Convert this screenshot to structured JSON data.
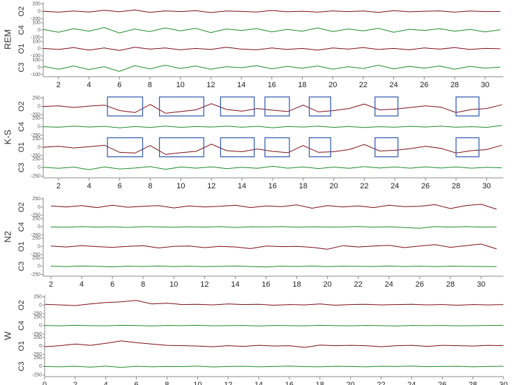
{
  "chart_data": [
    {
      "type": "line",
      "title": "REM",
      "x": [
        1,
        2,
        3,
        4,
        5,
        6,
        7,
        8,
        9,
        10,
        11,
        12,
        13,
        14,
        15,
        16,
        17,
        18,
        19,
        20,
        21,
        22,
        23,
        24,
        25,
        26,
        27,
        28,
        29,
        30,
        31
      ],
      "xlim": [
        1,
        31.2
      ],
      "xticks": [
        2,
        4,
        6,
        8,
        10,
        12,
        14,
        16,
        18,
        20,
        22,
        24,
        26,
        28,
        30
      ],
      "series": [
        {
          "name": "O2",
          "color": "#7a0c14",
          "ylim": [
            -250,
            250
          ],
          "yticks": [
            200,
            0,
            -200
          ],
          "values": [
            5,
            -20,
            10,
            -15,
            30,
            -10,
            40,
            -25,
            15,
            -5,
            20,
            -30,
            10,
            0,
            -15,
            25,
            -10,
            5,
            -20,
            15,
            -5,
            10,
            -25,
            20,
            -10,
            5,
            15,
            -20,
            10,
            -5,
            0
          ]
        },
        {
          "name": "C4",
          "color": "#1f8a2a",
          "ylim": [
            -130,
            130
          ],
          "yticks": [
            100,
            0,
            -100
          ],
          "values": [
            10,
            -30,
            20,
            -15,
            35,
            -40,
            15,
            -20,
            30,
            -10,
            25,
            -35,
            15,
            -5,
            20,
            -25,
            10,
            -15,
            30,
            -20,
            15,
            -10,
            25,
            -30,
            10,
            -5,
            20,
            -15,
            10,
            -25,
            5
          ]
        },
        {
          "name": "O1",
          "color": "#7a0c14",
          "ylim": [
            -130,
            130
          ],
          "yticks": [
            100,
            0,
            -100
          ],
          "values": [
            5,
            -10,
            15,
            -20,
            10,
            -25,
            20,
            -5,
            10,
            -15,
            5,
            -10,
            20,
            -5,
            -15,
            10,
            -10,
            5,
            -20,
            10,
            -5,
            15,
            -10,
            5,
            -15,
            10,
            -5,
            15,
            -10,
            5,
            0
          ]
        },
        {
          "name": "C3",
          "color": "#1f8a2a",
          "ylim": [
            -130,
            130
          ],
          "yticks": [
            100,
            0,
            -100
          ],
          "values": [
            15,
            -25,
            20,
            -30,
            10,
            -55,
            25,
            -20,
            30,
            -15,
            20,
            -25,
            10,
            -5,
            25,
            -20,
            15,
            -10,
            20,
            -25,
            10,
            -15,
            30,
            -20,
            15,
            -10,
            20,
            -25,
            15,
            -10,
            5
          ]
        }
      ]
    },
    {
      "type": "line",
      "title": "K-S",
      "x": [
        1,
        2,
        3,
        4,
        5,
        6,
        7,
        8,
        9,
        10,
        11,
        12,
        13,
        14,
        15,
        16,
        17,
        18,
        19,
        20,
        21,
        22,
        23,
        24,
        25,
        26,
        27,
        28,
        29,
        30,
        31
      ],
      "xlim": [
        1,
        31.1
      ],
      "xticks": [
        2,
        4,
        6,
        8,
        10,
        12,
        14,
        16,
        18,
        20,
        22,
        24,
        26,
        28,
        30
      ],
      "series": [
        {
          "name": "O2",
          "color": "#7a0c14",
          "ylim": [
            -300,
            300
          ],
          "yticks": [
            250,
            0,
            -250
          ],
          "values": [
            0,
            20,
            -30,
            10,
            40,
            -120,
            -180,
            60,
            -200,
            -150,
            -100,
            80,
            -90,
            -140,
            -60,
            -110,
            -150,
            40,
            -160,
            -120,
            -60,
            70,
            -100,
            -80,
            -30,
            20,
            -20,
            -180,
            -90,
            -60,
            50
          ],
          "spans": [
            [
              5.2,
              7.5
            ],
            [
              8.6,
              11.5
            ],
            [
              12.6,
              14.8
            ],
            [
              15.5,
              17.1
            ],
            [
              18.4,
              19.8
            ],
            [
              22.7,
              24.2
            ],
            [
              28,
              29.5
            ]
          ]
        },
        {
          "name": "C4",
          "color": "#1f8a2a",
          "ylim": [
            -300,
            300
          ],
          "yticks": [
            250,
            0,
            -250
          ],
          "values": [
            5,
            -10,
            20,
            -5,
            15,
            -30,
            10,
            -20,
            25,
            -15,
            10,
            -5,
            20,
            -10,
            15,
            -25,
            10,
            -5,
            20,
            -15,
            10,
            -20,
            5,
            -10,
            15,
            -5,
            20,
            -10,
            5,
            -15,
            40
          ]
        },
        {
          "name": "O1",
          "color": "#7a0c14",
          "ylim": [
            -300,
            300
          ],
          "yticks": [
            250,
            0,
            -250
          ],
          "values": [
            0,
            30,
            -20,
            15,
            60,
            -150,
            -170,
            50,
            -210,
            -160,
            -120,
            90,
            -100,
            -130,
            -50,
            -120,
            -160,
            50,
            -150,
            -130,
            -70,
            80,
            -110,
            -90,
            -40,
            30,
            -30,
            -170,
            -100,
            -70,
            60
          ],
          "spans": [
            [
              5.2,
              7.5
            ],
            [
              8.6,
              11.5
            ],
            [
              12.6,
              14.8
            ],
            [
              15.5,
              17.1
            ],
            [
              18.4,
              19.8
            ],
            [
              22.7,
              24.2
            ],
            [
              28,
              29.5
            ]
          ]
        },
        {
          "name": "C3",
          "color": "#1f8a2a",
          "ylim": [
            -300,
            300
          ],
          "yticks": [
            250,
            0,
            -250
          ],
          "values": [
            10,
            -20,
            15,
            -60,
            20,
            -40,
            -10,
            30,
            -50,
            20,
            -15,
            25,
            -30,
            10,
            -20,
            40,
            -15,
            20,
            -25,
            15,
            -20,
            30,
            -10,
            20,
            -15,
            25,
            -10,
            20,
            -15,
            10,
            -5
          ]
        }
      ]
    },
    {
      "type": "line",
      "title": "N2",
      "x": [
        2,
        3,
        4,
        5,
        6,
        7,
        8,
        9,
        10,
        11,
        12,
        13,
        14,
        15,
        16,
        17,
        18,
        19,
        20,
        21,
        22,
        23,
        24,
        25,
        26,
        27,
        28,
        29,
        30,
        31
      ],
      "xlim": [
        1.5,
        31.45
      ],
      "xticks": [
        2,
        4,
        6,
        8,
        10,
        12,
        14,
        16,
        18,
        20,
        22,
        24,
        26,
        28,
        30
      ],
      "series": [
        {
          "name": "O2",
          "color": "#7a0c14",
          "ylim": [
            -300,
            300
          ],
          "yticks": [
            250,
            0,
            -250
          ],
          "values": [
            40,
            10,
            50,
            -10,
            60,
            0,
            30,
            50,
            -20,
            40,
            10,
            30,
            60,
            -10,
            40,
            20,
            70,
            -30,
            50,
            10,
            40,
            -10,
            60,
            20,
            30,
            80,
            -40,
            50,
            90,
            -60
          ]
        },
        {
          "name": "C4",
          "color": "#1f8a2a",
          "ylim": [
            -300,
            300
          ],
          "yticks": [
            250,
            0,
            -250
          ],
          "values": [
            0,
            -10,
            10,
            -5,
            5,
            -15,
            10,
            0,
            -10,
            5,
            -5,
            10,
            -15,
            5,
            0,
            10,
            -10,
            5,
            -5,
            0,
            15,
            -10,
            5,
            -20,
            -40,
            10,
            -5,
            10,
            -5,
            0
          ]
        },
        {
          "name": "O1",
          "color": "#7a0c14",
          "ylim": [
            -300,
            300
          ],
          "yticks": [
            250,
            0,
            -250
          ],
          "values": [
            20,
            -10,
            30,
            0,
            -20,
            10,
            30,
            -40,
            10,
            20,
            -30,
            10,
            -10,
            -60,
            20,
            0,
            10,
            -20,
            -80,
            30,
            -10,
            20,
            40,
            -30,
            20,
            60,
            -20,
            30,
            80,
            -70
          ]
        },
        {
          "name": "C3",
          "color": "#1f8a2a",
          "ylim": [
            -300,
            300
          ],
          "yticks": [
            250,
            0,
            -250
          ],
          "values": [
            5,
            -10,
            10,
            0,
            -15,
            5,
            -5,
            10,
            -10,
            5,
            -10,
            0,
            10,
            -5,
            -20,
            5,
            -5,
            10,
            -10,
            5,
            0,
            -5,
            10,
            -5,
            5,
            -10,
            5,
            0,
            -5,
            -10
          ]
        }
      ]
    },
    {
      "type": "line",
      "title": "W",
      "x": [
        0,
        1,
        2,
        3,
        4,
        5,
        6,
        7,
        8,
        9,
        10,
        11,
        12,
        13,
        14,
        15,
        16,
        17,
        18,
        19,
        20,
        21,
        22,
        23,
        24,
        25,
        26,
        27,
        28,
        29,
        30
      ],
      "xlim": [
        0,
        30
      ],
      "xticks": [
        0,
        2,
        4,
        6,
        8,
        10,
        12,
        14,
        16,
        18,
        20,
        22,
        24,
        26,
        28,
        30
      ],
      "series": [
        {
          "name": "O2",
          "color": "#7a0c14",
          "ylim": [
            -300,
            300
          ],
          "yticks": [
            250,
            0,
            -250
          ],
          "values": [
            30,
            10,
            -10,
            40,
            80,
            100,
            140,
            40,
            60,
            20,
            30,
            10,
            40,
            20,
            30,
            0,
            20,
            10,
            40,
            0,
            20,
            30,
            10,
            20,
            30,
            10,
            20,
            0,
            20,
            10,
            20
          ]
        },
        {
          "name": "C4",
          "color": "#1f8a2a",
          "ylim": [
            -300,
            300
          ],
          "yticks": [
            250,
            0,
            -250
          ],
          "values": [
            5,
            -5,
            10,
            0,
            -5,
            10,
            5,
            -10,
            5,
            0,
            10,
            -5,
            0,
            5,
            -10,
            5,
            0,
            -5,
            10,
            0,
            -5,
            5,
            0,
            -10,
            5,
            0,
            5,
            -5,
            0,
            5,
            10
          ]
        },
        {
          "name": "O1",
          "color": "#7a0c14",
          "ylim": [
            -300,
            300
          ],
          "yticks": [
            250,
            0,
            -250
          ],
          "values": [
            -20,
            10,
            60,
            20,
            80,
            150,
            100,
            60,
            20,
            10,
            0,
            -20,
            10,
            -10,
            20,
            0,
            10,
            -40,
            30,
            10,
            20,
            10,
            -20,
            10,
            20,
            -10,
            20,
            10,
            0,
            20,
            10
          ]
        },
        {
          "name": "C3",
          "color": "#1f8a2a",
          "ylim": [
            -300,
            300
          ],
          "yticks": [
            250,
            0,
            -250
          ],
          "values": [
            0,
            -10,
            5,
            -20,
            10,
            -30,
            5,
            -10,
            0,
            -5,
            10,
            -15,
            0,
            5,
            -10,
            0,
            10,
            -5,
            -10,
            5,
            0,
            -10,
            5,
            0,
            10,
            -5,
            0,
            5,
            -10,
            0,
            5
          ]
        }
      ]
    }
  ]
}
